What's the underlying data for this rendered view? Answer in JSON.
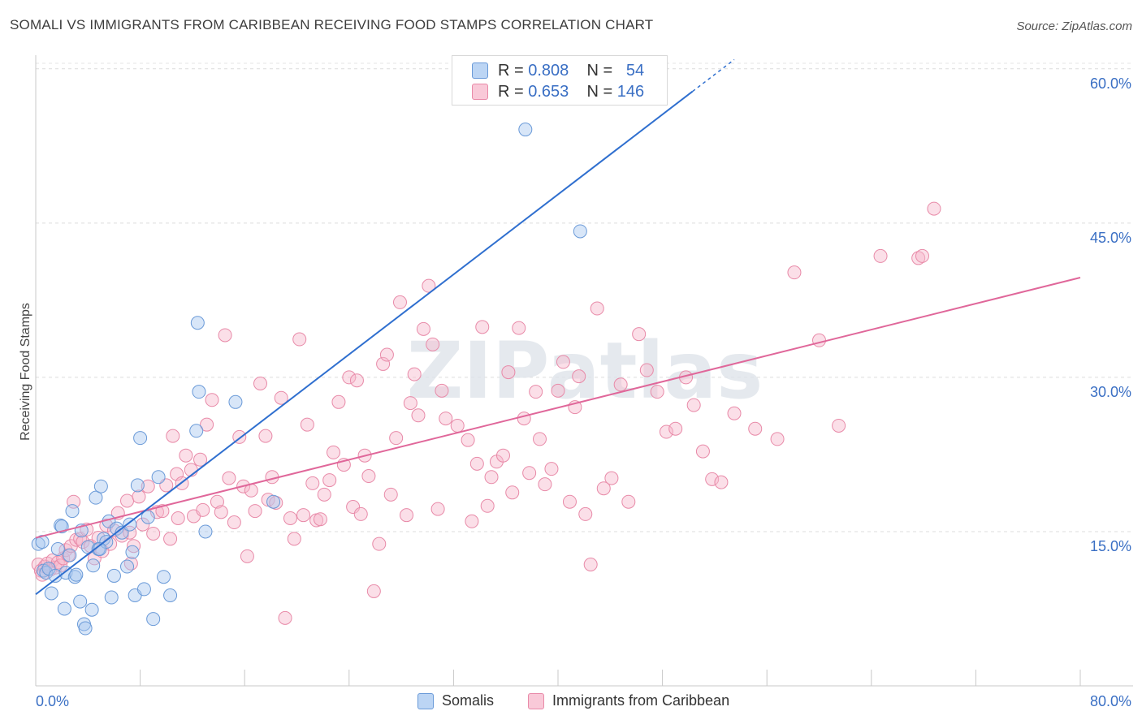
{
  "title": "SOMALI VS IMMIGRANTS FROM CARIBBEAN RECEIVING FOOD STAMPS CORRELATION CHART",
  "source": "Source: ZipAtlas.com",
  "watermark": "ZIPatlas",
  "legend": {
    "series": [
      {
        "r_label": "R = ",
        "r_value": "0.808",
        "n_label": "N = ",
        "n_value": "54"
      },
      {
        "r_label": "R = ",
        "r_value": "0.653",
        "n_label": "N = ",
        "n_value": "146"
      }
    ]
  },
  "colors": {
    "somali_fill": "#a8c8f0",
    "somali_stroke": "#6a9ad8",
    "somali_line": "#2f6fcf",
    "carib_fill": "#f7b8cc",
    "carib_stroke": "#e88aa8",
    "carib_line": "#e0679a",
    "tick_label": "#3a6fc4"
  },
  "chart_data": {
    "type": "scatter",
    "title": "SOMALI VS IMMIGRANTS FROM CARIBBEAN RECEIVING FOOD STAMPS CORRELATION CHART",
    "xlabel": "",
    "ylabel": "Receiving Food Stamps",
    "xlim": [
      0,
      80
    ],
    "ylim": [
      0,
      60
    ],
    "x_tick_labels": [
      "0.0%",
      "80.0%"
    ],
    "y_tick_labels": [
      "15.0%",
      "30.0%",
      "45.0%",
      "60.0%"
    ],
    "y_ticks": [
      15,
      30,
      45,
      60
    ],
    "grid": "horizontal dashed",
    "legend_position": "top-center",
    "series": [
      {
        "name": "Somalis",
        "r": 0.808,
        "n": 54,
        "trend": {
          "x": [
            0,
            50.3
          ],
          "y": [
            8.9,
            57.8
          ],
          "dashed_to": [
            53.5,
            60.9
          ]
        },
        "points": [
          [
            0.2,
            13.8
          ],
          [
            0.5,
            14.0
          ],
          [
            0.6,
            11.2
          ],
          [
            0.8,
            11.0
          ],
          [
            1.0,
            11.4
          ],
          [
            1.2,
            9.0
          ],
          [
            1.5,
            10.7
          ],
          [
            1.7,
            13.3
          ],
          [
            1.9,
            15.6
          ],
          [
            2.0,
            15.5
          ],
          [
            2.2,
            7.5
          ],
          [
            2.3,
            11.0
          ],
          [
            2.6,
            12.7
          ],
          [
            2.8,
            17.0
          ],
          [
            3.0,
            10.6
          ],
          [
            3.1,
            10.8
          ],
          [
            3.4,
            8.2
          ],
          [
            3.5,
            15.1
          ],
          [
            3.7,
            6.0
          ],
          [
            3.8,
            5.6
          ],
          [
            4.0,
            13.5
          ],
          [
            4.3,
            7.4
          ],
          [
            4.4,
            11.7
          ],
          [
            4.6,
            18.3
          ],
          [
            4.8,
            13.3
          ],
          [
            5.0,
            19.4
          ],
          [
            5.2,
            14.3
          ],
          [
            5.4,
            14.0
          ],
          [
            5.6,
            16.0
          ],
          [
            5.8,
            8.6
          ],
          [
            6.0,
            10.7
          ],
          [
            6.2,
            15.3
          ],
          [
            6.6,
            14.9
          ],
          [
            7.0,
            11.6
          ],
          [
            7.2,
            15.7
          ],
          [
            7.4,
            13.0
          ],
          [
            7.6,
            8.8
          ],
          [
            7.8,
            19.5
          ],
          [
            8.0,
            24.1
          ],
          [
            8.3,
            9.4
          ],
          [
            8.6,
            16.4
          ],
          [
            9.0,
            6.5
          ],
          [
            9.4,
            20.3
          ],
          [
            9.8,
            10.6
          ],
          [
            10.3,
            8.8
          ],
          [
            12.3,
            24.8
          ],
          [
            12.4,
            35.3
          ],
          [
            12.5,
            28.6
          ],
          [
            15.3,
            27.6
          ],
          [
            18.2,
            17.9
          ],
          [
            37.5,
            54.1
          ],
          [
            41.7,
            44.2
          ],
          [
            13.0,
            15.0
          ],
          [
            4.9,
            13.3
          ]
        ]
      },
      {
        "name": "Immigrants from Caribbean",
        "r": 0.653,
        "n": 146,
        "trend": {
          "x": [
            0,
            80
          ],
          "y": [
            14.4,
            39.7
          ]
        },
        "points": [
          [
            0.2,
            11.8
          ],
          [
            0.4,
            11.2
          ],
          [
            0.5,
            10.8
          ],
          [
            0.7,
            11.6
          ],
          [
            0.9,
            11.9
          ],
          [
            1.1,
            11.3
          ],
          [
            1.3,
            12.2
          ],
          [
            1.5,
            11.5
          ],
          [
            1.7,
            12.0
          ],
          [
            1.9,
            11.7
          ],
          [
            2.1,
            12.4
          ],
          [
            2.3,
            13.2
          ],
          [
            2.5,
            12.7
          ],
          [
            2.7,
            13.6
          ],
          [
            2.9,
            17.9
          ],
          [
            3.1,
            14.2
          ],
          [
            3.4,
            14.3
          ],
          [
            3.6,
            14.0
          ],
          [
            3.9,
            15.2
          ],
          [
            4.2,
            13.6
          ],
          [
            4.5,
            12.4
          ],
          [
            4.8,
            14.4
          ],
          [
            5.1,
            13.1
          ],
          [
            5.4,
            15.6
          ],
          [
            5.7,
            13.8
          ],
          [
            6.0,
            15.1
          ],
          [
            6.3,
            16.8
          ],
          [
            6.6,
            14.6
          ],
          [
            7.0,
            18.0
          ],
          [
            7.2,
            14.9
          ],
          [
            7.5,
            13.6
          ],
          [
            7.9,
            18.4
          ],
          [
            8.2,
            15.7
          ],
          [
            8.6,
            19.4
          ],
          [
            9.0,
            14.8
          ],
          [
            9.3,
            16.9
          ],
          [
            9.7,
            17.0
          ],
          [
            10.0,
            19.5
          ],
          [
            10.3,
            14.3
          ],
          [
            10.5,
            24.3
          ],
          [
            10.8,
            20.6
          ],
          [
            11.2,
            19.7
          ],
          [
            11.5,
            22.4
          ],
          [
            11.9,
            21.0
          ],
          [
            12.1,
            16.5
          ],
          [
            12.6,
            22.0
          ],
          [
            12.8,
            17.1
          ],
          [
            13.1,
            25.4
          ],
          [
            13.5,
            27.8
          ],
          [
            13.9,
            17.9
          ],
          [
            14.2,
            16.9
          ],
          [
            14.5,
            34.1
          ],
          [
            14.8,
            20.2
          ],
          [
            15.2,
            15.9
          ],
          [
            15.6,
            24.2
          ],
          [
            15.9,
            19.4
          ],
          [
            16.2,
            12.6
          ],
          [
            16.5,
            19.0
          ],
          [
            16.8,
            17.0
          ],
          [
            17.2,
            29.4
          ],
          [
            17.6,
            24.3
          ],
          [
            17.8,
            18.1
          ],
          [
            18.1,
            20.3
          ],
          [
            18.4,
            17.8
          ],
          [
            18.8,
            28.0
          ],
          [
            19.1,
            6.6
          ],
          [
            19.5,
            16.3
          ],
          [
            19.8,
            14.3
          ],
          [
            20.2,
            33.7
          ],
          [
            20.5,
            16.6
          ],
          [
            20.8,
            25.4
          ],
          [
            21.2,
            19.7
          ],
          [
            21.5,
            16.1
          ],
          [
            21.8,
            16.2
          ],
          [
            22.1,
            18.6
          ],
          [
            22.5,
            20.0
          ],
          [
            22.8,
            22.7
          ],
          [
            23.2,
            27.6
          ],
          [
            23.6,
            21.5
          ],
          [
            24.0,
            30.0
          ],
          [
            24.3,
            17.4
          ],
          [
            24.6,
            29.7
          ],
          [
            24.9,
            16.7
          ],
          [
            25.2,
            22.4
          ],
          [
            25.5,
            20.4
          ],
          [
            25.9,
            9.2
          ],
          [
            26.3,
            13.8
          ],
          [
            26.6,
            31.3
          ],
          [
            26.9,
            32.2
          ],
          [
            27.2,
            18.6
          ],
          [
            27.6,
            24.1
          ],
          [
            27.9,
            37.3
          ],
          [
            28.4,
            16.6
          ],
          [
            28.7,
            27.5
          ],
          [
            29.0,
            30.3
          ],
          [
            29.3,
            26.3
          ],
          [
            29.7,
            34.7
          ],
          [
            30.1,
            38.9
          ],
          [
            30.4,
            33.2
          ],
          [
            30.8,
            17.2
          ],
          [
            31.1,
            28.7
          ],
          [
            31.4,
            26.0
          ],
          [
            32.3,
            25.3
          ],
          [
            33.1,
            23.9
          ],
          [
            33.4,
            16.0
          ],
          [
            33.8,
            21.6
          ],
          [
            34.2,
            34.9
          ],
          [
            34.6,
            17.5
          ],
          [
            34.9,
            20.3
          ],
          [
            35.3,
            21.8
          ],
          [
            35.8,
            22.4
          ],
          [
            36.2,
            30.5
          ],
          [
            36.5,
            18.8
          ],
          [
            37.0,
            34.8
          ],
          [
            37.4,
            26.0
          ],
          [
            37.8,
            20.7
          ],
          [
            38.3,
            28.6
          ],
          [
            38.6,
            24.0
          ],
          [
            39.0,
            19.6
          ],
          [
            39.5,
            21.1
          ],
          [
            40.0,
            28.7
          ],
          [
            40.4,
            31.5
          ],
          [
            40.9,
            17.9
          ],
          [
            41.3,
            27.1
          ],
          [
            41.6,
            30.1
          ],
          [
            42.1,
            16.7
          ],
          [
            42.5,
            11.8
          ],
          [
            43.0,
            36.7
          ],
          [
            43.5,
            19.2
          ],
          [
            44.1,
            20.2
          ],
          [
            44.8,
            29.3
          ],
          [
            45.4,
            17.9
          ],
          [
            46.2,
            34.2
          ],
          [
            46.8,
            30.7
          ],
          [
            47.6,
            28.6
          ],
          [
            48.3,
            24.7
          ],
          [
            49.0,
            25.0
          ],
          [
            49.8,
            30.0
          ],
          [
            50.4,
            27.3
          ],
          [
            51.1,
            22.8
          ],
          [
            51.8,
            20.1
          ],
          [
            52.5,
            19.8
          ],
          [
            53.5,
            26.5
          ],
          [
            55.1,
            25.0
          ],
          [
            56.8,
            24.0
          ],
          [
            58.1,
            40.2
          ],
          [
            60.0,
            33.6
          ],
          [
            61.5,
            25.3
          ],
          [
            64.7,
            41.8
          ],
          [
            67.6,
            41.6
          ],
          [
            67.9,
            41.8
          ],
          [
            68.8,
            46.4
          ],
          [
            7.3,
            11.9
          ],
          [
            10.9,
            16.3
          ]
        ]
      }
    ]
  },
  "bottom_legend": {
    "somali_label": "Somalis",
    "carib_label": "Immigrants from Caribbean"
  },
  "axis_labels": {
    "x_min": "0.0%",
    "x_max": "80.0%",
    "y_15": "15.0%",
    "y_30": "30.0%",
    "y_45": "45.0%",
    "y_60": "60.0%",
    "ylabel": "Receiving Food Stamps"
  }
}
